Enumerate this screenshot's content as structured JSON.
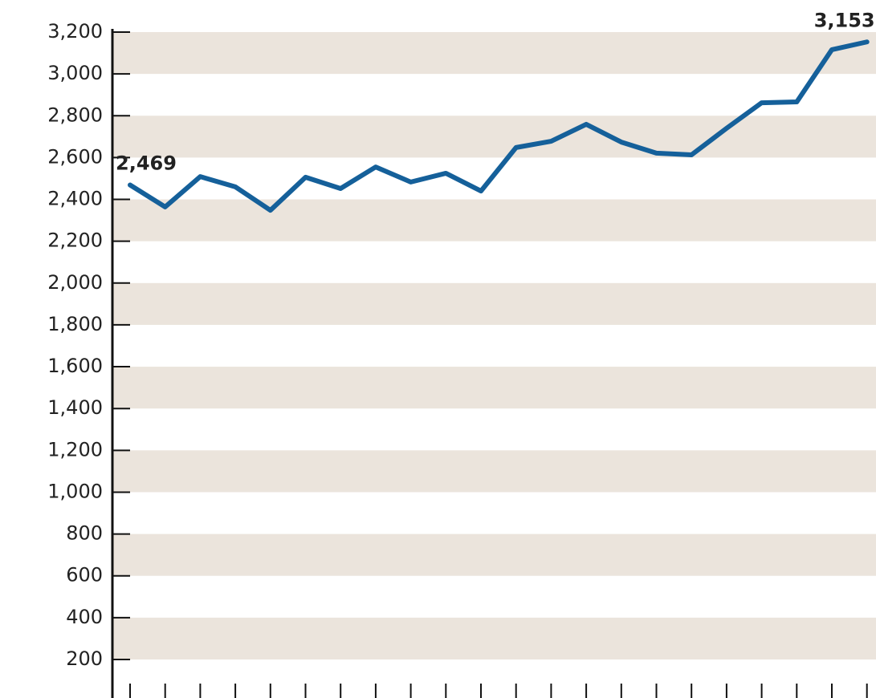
{
  "chart_data": {
    "type": "line",
    "categories": [
      null,
      null,
      null,
      null,
      null,
      null,
      null,
      null,
      null,
      null,
      null,
      null,
      null,
      null,
      null,
      null,
      null,
      null,
      null,
      null,
      null,
      null
    ],
    "series": [
      {
        "color": "#15609a",
        "values": [
          2469,
          2364,
          2509,
          2460,
          2348,
          2506,
          2452,
          2555,
          2483,
          2525,
          2440,
          2648,
          2678,
          2759,
          2674,
          2621,
          2613,
          2740,
          2862,
          2866,
          3116,
          3153
        ],
        "value_labels": [
          "2,469",
          null,
          null,
          null,
          null,
          null,
          null,
          null,
          null,
          null,
          null,
          null,
          null,
          null,
          null,
          null,
          null,
          null,
          null,
          null,
          null,
          "3,153"
        ]
      }
    ],
    "ylim": [
      20,
      3200
    ],
    "yticks": [
      {
        "value": 200,
        "label": "200"
      },
      {
        "value": 400,
        "label": "400"
      },
      {
        "value": 600,
        "label": "600"
      },
      {
        "value": 800,
        "label": "800"
      },
      {
        "value": 1000,
        "label": "1,000"
      },
      {
        "value": 1200,
        "label": "1,200"
      },
      {
        "value": 1400,
        "label": "1,400"
      },
      {
        "value": 1600,
        "label": "1,600"
      },
      {
        "value": 1800,
        "label": "1,800"
      },
      {
        "value": 2000,
        "label": "2,000"
      },
      {
        "value": 2200,
        "label": "2,200"
      },
      {
        "value": 2400,
        "label": "2,400"
      },
      {
        "value": 2600,
        "label": "2,600"
      },
      {
        "value": 2800,
        "label": "2,800"
      },
      {
        "value": 3000,
        "label": "3,000"
      },
      {
        "value": 3200,
        "label": "3,200"
      }
    ],
    "grid": "bands"
  }
}
